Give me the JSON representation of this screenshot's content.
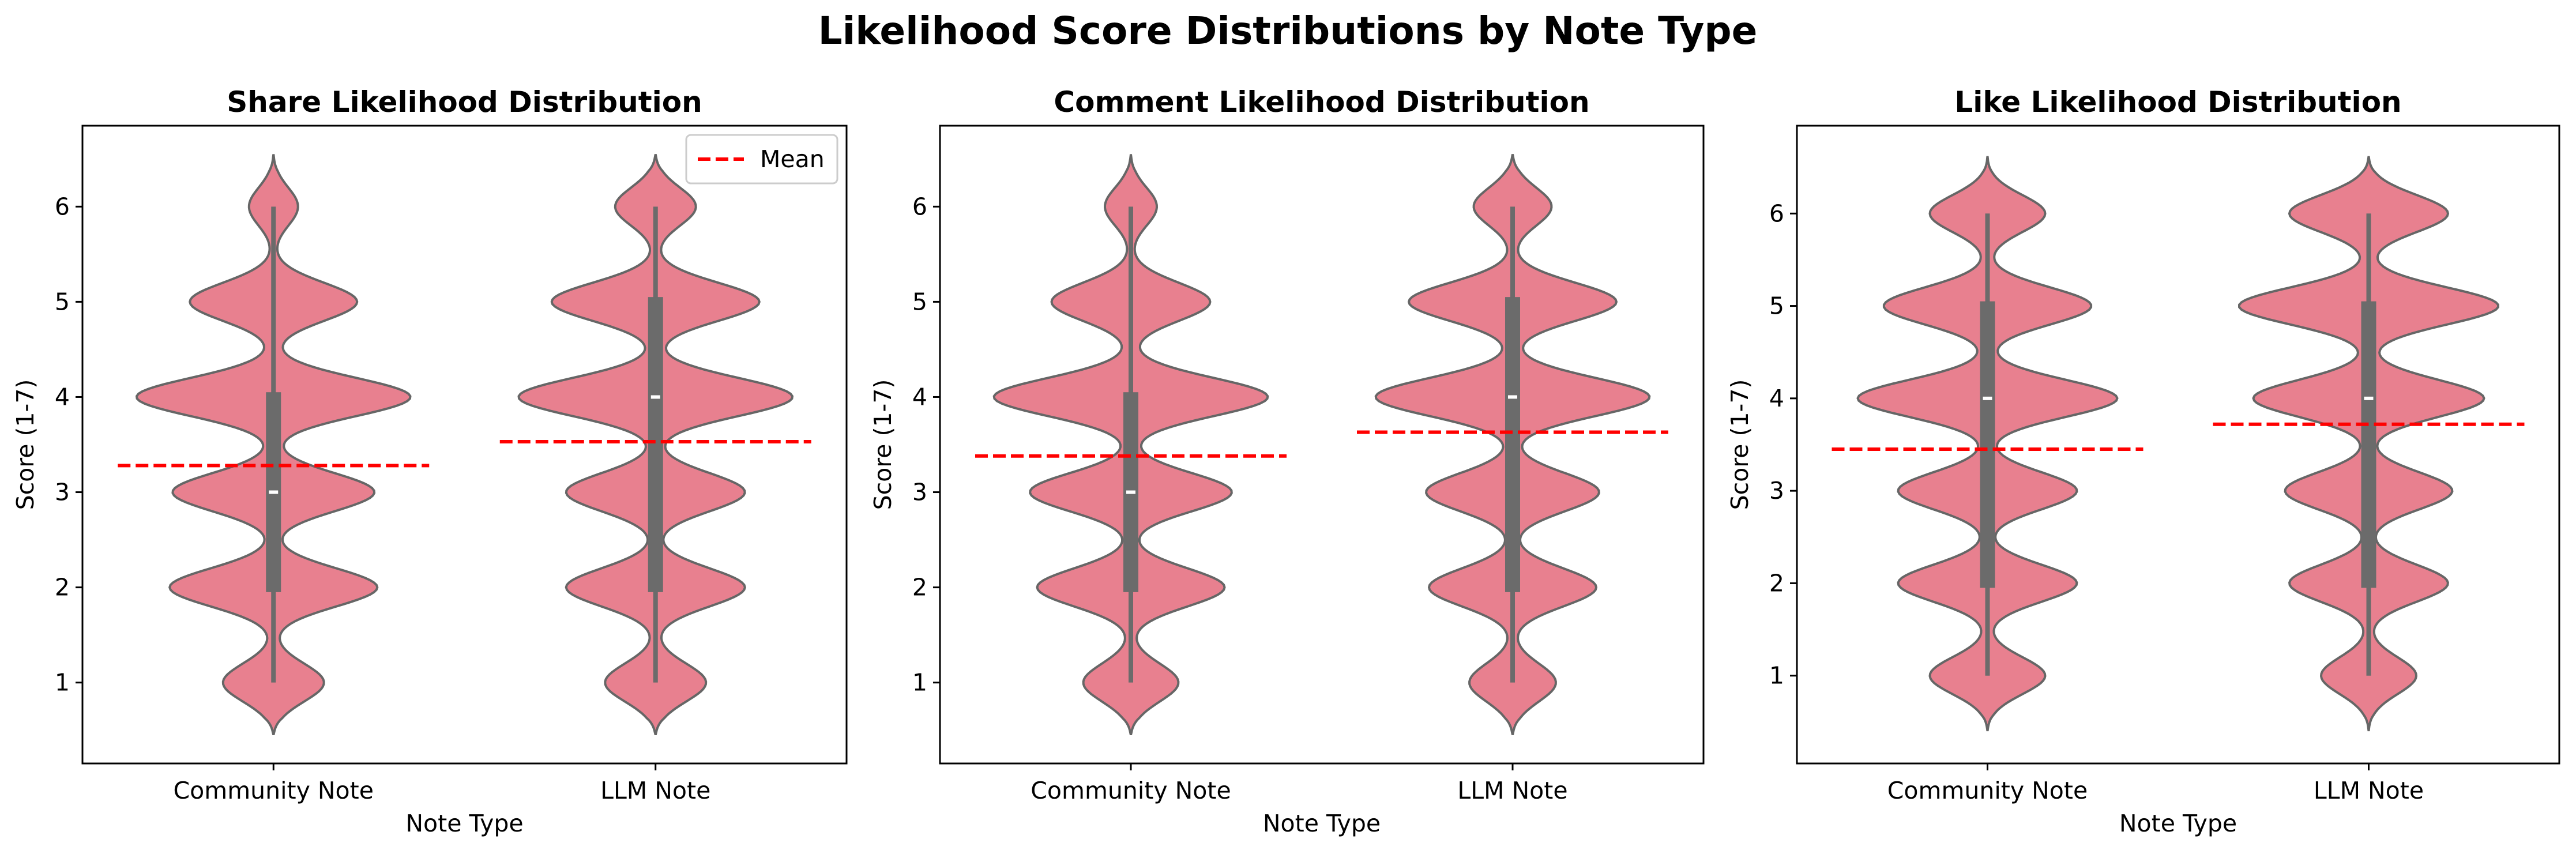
{
  "figure_title": "Likelihood Score Distributions by Note Type",
  "colors": {
    "violin_fill": "#e8808f",
    "violin_edge": "#666666",
    "box": "#6b6b6b",
    "median": "#ffffff",
    "mean_line": "#ff0000"
  },
  "legend": {
    "label": "Mean",
    "location": "upper right",
    "panel": 0
  },
  "chart_data": [
    {
      "type": "violin",
      "title": "Share Likelihood Distribution",
      "xlabel": "Note Type",
      "ylabel": "Score (1-7)",
      "categories": [
        "Community Note",
        "LLM Note"
      ],
      "ylim": [
        0.15,
        6.85
      ],
      "yticks": [
        1,
        2,
        3,
        4,
        5,
        6
      ],
      "grid": false,
      "series": [
        {
          "category": "Community Note",
          "min": 1,
          "q1": 1.95,
          "median": 3,
          "q3": 4.05,
          "max": 6,
          "mean": 3.28,
          "kde_range": [
            0.45,
            6.55
          ],
          "density_peaks": [
            [
              1,
              0.35
            ],
            [
              2,
              0.72
            ],
            [
              3,
              0.7
            ],
            [
              4,
              0.95
            ],
            [
              5,
              0.58
            ],
            [
              6,
              0.17
            ]
          ]
        },
        {
          "category": "LLM Note",
          "min": 1,
          "q1": 1.95,
          "median": 4,
          "q3": 5.05,
          "max": 6,
          "mean": 3.53,
          "kde_range": [
            0.45,
            6.55
          ],
          "density_peaks": [
            [
              1,
              0.35
            ],
            [
              2,
              0.62
            ],
            [
              3,
              0.62
            ],
            [
              4,
              0.95
            ],
            [
              5,
              0.72
            ],
            [
              6,
              0.28
            ]
          ]
        }
      ]
    },
    {
      "type": "violin",
      "title": "Comment Likelihood Distribution",
      "xlabel": "Note Type",
      "ylabel": "Score (1-7)",
      "categories": [
        "Community Note",
        "LLM Note"
      ],
      "ylim": [
        0.15,
        6.85
      ],
      "yticks": [
        1,
        2,
        3,
        4,
        5,
        6
      ],
      "grid": false,
      "series": [
        {
          "category": "Community Note",
          "min": 1,
          "q1": 1.95,
          "median": 3,
          "q3": 4.05,
          "max": 6,
          "mean": 3.38,
          "kde_range": [
            0.45,
            6.55
          ],
          "density_peaks": [
            [
              1,
              0.33
            ],
            [
              2,
              0.65
            ],
            [
              3,
              0.7
            ],
            [
              4,
              0.95
            ],
            [
              5,
              0.55
            ],
            [
              6,
              0.18
            ]
          ]
        },
        {
          "category": "LLM Note",
          "min": 1,
          "q1": 1.95,
          "median": 4,
          "q3": 5.05,
          "max": 6,
          "mean": 3.63,
          "kde_range": [
            0.45,
            6.55
          ],
          "density_peaks": [
            [
              1,
              0.3
            ],
            [
              2,
              0.58
            ],
            [
              3,
              0.6
            ],
            [
              4,
              0.95
            ],
            [
              5,
              0.72
            ],
            [
              6,
              0.27
            ]
          ]
        }
      ]
    },
    {
      "type": "violin",
      "title": "Like Likelihood Distribution",
      "xlabel": "Note Type",
      "ylabel": "Score (1-7)",
      "categories": [
        "Community Note",
        "LLM Note"
      ],
      "ylim": [
        0.05,
        6.95
      ],
      "yticks": [
        1,
        2,
        3,
        4,
        5,
        6
      ],
      "grid": false,
      "series": [
        {
          "category": "Community Note",
          "min": 1,
          "q1": 1.95,
          "median": 4,
          "q3": 5.05,
          "max": 6,
          "mean": 3.45,
          "kde_range": [
            0.4,
            6.62
          ],
          "density_peaks": [
            [
              1,
              0.4
            ],
            [
              2,
              0.62
            ],
            [
              3,
              0.62
            ],
            [
              4,
              0.9
            ],
            [
              5,
              0.72
            ],
            [
              6,
              0.4
            ]
          ]
        },
        {
          "category": "LLM Note",
          "min": 1,
          "q1": 1.95,
          "median": 4,
          "q3": 5.05,
          "max": 6,
          "mean": 3.72,
          "kde_range": [
            0.4,
            6.62
          ],
          "density_peaks": [
            [
              1,
              0.33
            ],
            [
              2,
              0.55
            ],
            [
              3,
              0.58
            ],
            [
              4,
              0.8
            ],
            [
              5,
              0.9
            ],
            [
              6,
              0.55
            ]
          ]
        }
      ]
    }
  ]
}
